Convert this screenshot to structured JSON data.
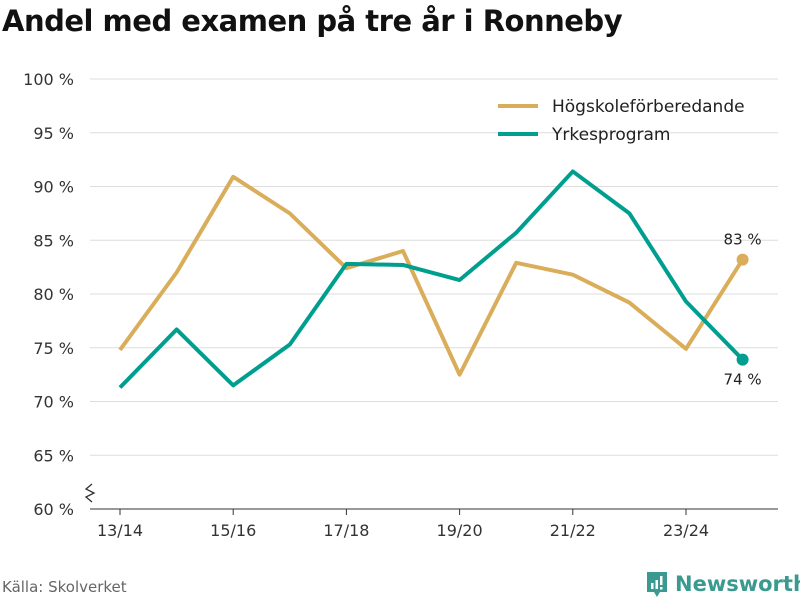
{
  "title": "Andel med examen på tre år i Ronneby",
  "source": "Källa: Skolverket",
  "brand": "Newsworthy",
  "chart_data": {
    "type": "line",
    "title": "Andel med examen på tre år i Ronneby",
    "x": [
      "13/14",
      "14/15",
      "15/16",
      "16/17",
      "17/18",
      "18/19",
      "19/20",
      "20/21",
      "21/22",
      "22/23",
      "23/24",
      "24/25"
    ],
    "xticks": [
      "13/14",
      "15/16",
      "17/18",
      "19/20",
      "21/22",
      "23/24"
    ],
    "ylim": [
      60,
      100
    ],
    "yticks": [
      "60 %",
      "65 %",
      "70 %",
      "75 %",
      "80 %",
      "85 %",
      "90 %",
      "95 %",
      "100 %"
    ],
    "ytick_values": [
      60,
      65,
      70,
      75,
      80,
      85,
      90,
      95,
      100
    ],
    "grid": true,
    "legend": "top-right",
    "series": [
      {
        "name": "Högskoleförberedande",
        "color": "#d9ad5a",
        "values": [
          74.8,
          82.0,
          90.9,
          87.5,
          82.4,
          84.0,
          72.5,
          82.9,
          81.8,
          79.2,
          74.9,
          83.2
        ],
        "end_label": "83 %"
      },
      {
        "name": "Yrkesprogram",
        "color": "#009e8f",
        "values": [
          71.3,
          76.7,
          71.5,
          75.3,
          82.8,
          82.7,
          81.3,
          85.7,
          91.4,
          87.5,
          79.3,
          73.9
        ],
        "end_label": "74 %"
      }
    ]
  }
}
